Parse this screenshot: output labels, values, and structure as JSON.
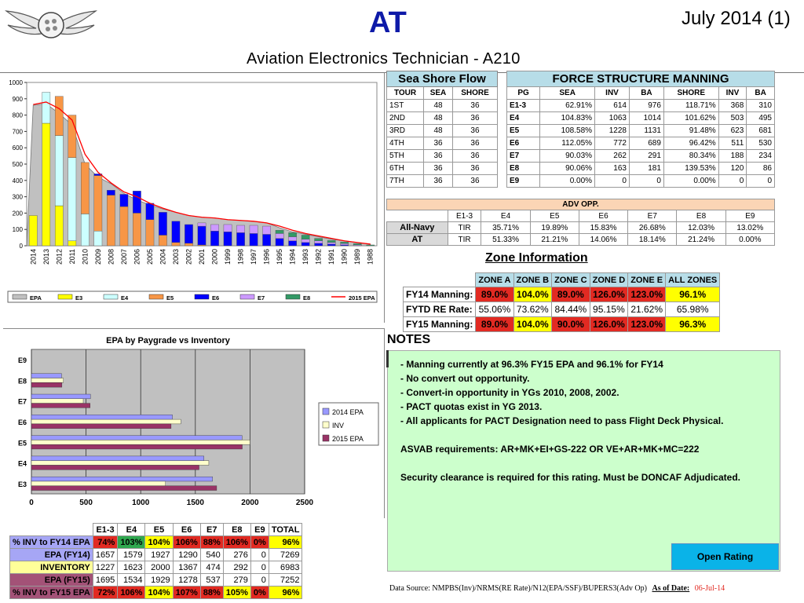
{
  "header": {
    "title": "AT",
    "date": "July 2014 (1)",
    "subtitle": "Aviation Electronics Technician - A210"
  },
  "colors": {
    "epa": "#c0c0c0",
    "e3": "#ffff00",
    "e4": "#ccffff",
    "e5": "#f79646",
    "e6": "#0000ff",
    "e7": "#cc99ff",
    "e8": "#339966",
    "line2015": "#ff0000",
    "bar2014": "#9999ff",
    "barInv": "#ffffcc",
    "bar2015": "#993366"
  },
  "chart_data": [
    {
      "type": "bar",
      "categories": [
        "2014",
        "2013",
        "2012",
        "2011",
        "2010",
        "2009",
        "2008",
        "2007",
        "2006",
        "2005",
        "2004",
        "2003",
        "2002",
        "2001",
        "2000",
        "1999",
        "1998",
        "1997",
        "1996",
        "1995",
        "1994",
        "1993",
        "1992",
        "1991",
        "1990",
        "1989",
        "1988"
      ],
      "ylim": [
        0,
        1000
      ],
      "yticks": [
        0,
        100,
        200,
        300,
        400,
        500,
        600,
        700,
        800,
        900,
        1000
      ],
      "series": [
        {
          "name": "EPA",
          "values": [
            860,
            870,
            810,
            740,
            500,
            420,
            380,
            320,
            280,
            250,
            225,
            205,
            185,
            175,
            170,
            160,
            155,
            150,
            140,
            110,
            85,
            70,
            55,
            40,
            30,
            20,
            10
          ]
        },
        {
          "name": "E3",
          "values": [
            185,
            750,
            245,
            30,
            0,
            0,
            0,
            0,
            0,
            0,
            0,
            0,
            0,
            0,
            0,
            0,
            0,
            0,
            0,
            0,
            0,
            0,
            0,
            0,
            0,
            0,
            0
          ]
        },
        {
          "name": "E4",
          "values": [
            0,
            190,
            430,
            510,
            195,
            90,
            0,
            0,
            0,
            0,
            0,
            0,
            0,
            0,
            0,
            0,
            0,
            0,
            0,
            0,
            0,
            0,
            0,
            0,
            0,
            0,
            0
          ]
        },
        {
          "name": "E5",
          "values": [
            0,
            0,
            240,
            260,
            315,
            340,
            310,
            240,
            200,
            160,
            65,
            20,
            15,
            5,
            0,
            0,
            0,
            0,
            0,
            0,
            0,
            0,
            0,
            0,
            0,
            0,
            0
          ]
        },
        {
          "name": "E6",
          "values": [
            0,
            0,
            0,
            0,
            0,
            10,
            30,
            75,
            135,
            100,
            140,
            130,
            115,
            115,
            90,
            85,
            80,
            75,
            70,
            45,
            30,
            20,
            15,
            10,
            5,
            0,
            0
          ]
        },
        {
          "name": "E7",
          "values": [
            0,
            0,
            0,
            0,
            0,
            0,
            0,
            0,
            0,
            0,
            0,
            0,
            0,
            20,
            40,
            45,
            45,
            50,
            50,
            30,
            25,
            20,
            15,
            10,
            8,
            5,
            0
          ]
        },
        {
          "name": "E8",
          "values": [
            0,
            0,
            0,
            0,
            0,
            0,
            0,
            0,
            0,
            0,
            0,
            0,
            0,
            0,
            0,
            0,
            0,
            0,
            0,
            20,
            25,
            25,
            15,
            12,
            10,
            8,
            5
          ]
        },
        {
          "name": "2015 EPA",
          "type": "line",
          "values": [
            865,
            880,
            840,
            770,
            560,
            450,
            385,
            330,
            300,
            260,
            230,
            205,
            185,
            175,
            170,
            160,
            155,
            150,
            140,
            120,
            95,
            75,
            60,
            45,
            30,
            20,
            10
          ]
        }
      ],
      "legend": [
        "EPA",
        "E3",
        "E4",
        "E5",
        "E6",
        "E7",
        "E8",
        "2015 EPA"
      ],
      "legend_position": "bottom"
    },
    {
      "type": "bar",
      "orientation": "horizontal",
      "title": "EPA by Paygrade vs Inventory",
      "categories": [
        "E9",
        "E8",
        "E7",
        "E6",
        "E5",
        "E4",
        "E3"
      ],
      "xlim": [
        0,
        2500
      ],
      "xticks": [
        0,
        500,
        1000,
        1500,
        2000,
        2500
      ],
      "series": [
        {
          "name": "2014 EPA",
          "values": [
            0,
            276,
            540,
            1290,
            1927,
            1579,
            1657
          ]
        },
        {
          "name": "INV",
          "values": [
            0,
            292,
            474,
            1367,
            2000,
            1623,
            1227
          ]
        },
        {
          "name": "2015 EPA",
          "values": [
            0,
            279,
            537,
            1278,
            1929,
            1534,
            1695
          ]
        }
      ],
      "legend_position": "right"
    }
  ],
  "sea_shore": {
    "title": "Sea Shore Flow",
    "headers": [
      "TOUR",
      "SEA",
      "SHORE"
    ],
    "rows": [
      [
        "1ST",
        "48",
        "36"
      ],
      [
        "2ND",
        "48",
        "36"
      ],
      [
        "3RD",
        "48",
        "36"
      ],
      [
        "4TH",
        "36",
        "36"
      ],
      [
        "5TH",
        "36",
        "36"
      ],
      [
        "6TH",
        "36",
        "36"
      ],
      [
        "7TH",
        "36",
        "36"
      ]
    ]
  },
  "force": {
    "title": "FORCE STRUCTURE MANNING",
    "headers": [
      "PG",
      "SEA",
      "INV",
      "BA",
      "SHORE",
      "INV",
      "BA"
    ],
    "rows": [
      [
        "E1-3",
        "62.91%",
        "614",
        "976",
        "118.71%",
        "368",
        "310"
      ],
      [
        "E4",
        "104.83%",
        "1063",
        "1014",
        "101.62%",
        "503",
        "495"
      ],
      [
        "E5",
        "108.58%",
        "1228",
        "1131",
        "91.48%",
        "623",
        "681"
      ],
      [
        "E6",
        "112.05%",
        "772",
        "689",
        "96.42%",
        "511",
        "530"
      ],
      [
        "E7",
        "90.03%",
        "262",
        "291",
        "80.34%",
        "188",
        "234"
      ],
      [
        "E8",
        "90.06%",
        "163",
        "181",
        "139.53%",
        "120",
        "86"
      ],
      [
        "E9",
        "0.00%",
        "0",
        "0",
        "0.00%",
        "0",
        "0"
      ]
    ]
  },
  "adv": {
    "title": "ADV OPP.",
    "headers": [
      "E1-3",
      "E4",
      "E5",
      "E6",
      "E7",
      "E8",
      "E9"
    ],
    "rows": [
      {
        "label": "All-Navy",
        "vals": [
          "TIR",
          "35.71%",
          "19.89%",
          "15.83%",
          "26.68%",
          "12.03%",
          "13.02%"
        ]
      },
      {
        "label": "AT",
        "vals": [
          "TIR",
          "51.33%",
          "21.21%",
          "14.06%",
          "18.14%",
          "21.24%",
          "0.00%"
        ]
      }
    ]
  },
  "zone": {
    "title": "Zone Information",
    "headers": [
      "ZONE A",
      "ZONE B",
      "ZONE C",
      "ZONE D",
      "ZONE E",
      "ALL ZONES"
    ],
    "rows": [
      {
        "label": "FY14 Manning:",
        "vals": [
          "89.0%",
          "104.0%",
          "89.0%",
          "126.0%",
          "123.0%",
          "96.1%"
        ],
        "cls": [
          "r",
          "y",
          "r",
          "r",
          "r",
          "y"
        ]
      },
      {
        "label": "FYTD RE Rate:",
        "vals": [
          "55.06%",
          "73.62%",
          "84.44%",
          "95.15%",
          "21.62%",
          "65.98%"
        ],
        "cls": [
          "plain",
          "plain",
          "plain",
          "plain",
          "plain",
          "plain"
        ]
      },
      {
        "label": "FY15 Manning:",
        "vals": [
          "89.0%",
          "104.0%",
          "90.0%",
          "126.0%",
          "123.0%",
          "96.3%"
        ],
        "cls": [
          "r",
          "y",
          "r",
          "r",
          "r",
          "y"
        ]
      }
    ]
  },
  "notes": {
    "title": "NOTES",
    "lines": [
      "- Manning currently at  96.3% FY15 EPA and 96.1% for FY14",
      "- No convert out opportunity.",
      "- Convert-in opportunity in YGs 2010, 2008, 2002.",
      "- PACT quotas exist  in YG 2013.",
      "- All applicants for PACT Designation need to pass Flight Deck Physical."
    ],
    "asvab": "ASVAB requirements: AR+MK+EI+GS-222 OR VE+AR+MK+MC=222",
    "security": "Security clearance is required for this rating.  Must be DONCAF Adjudicated.",
    "button": "Open Rating"
  },
  "source": {
    "text": "Data Source: NMPBS(Inv)/NRMS(RE Rate)/N12(EPA/SSF)/BUPERS3(Adv Op)",
    "asof_label": "As of Date:",
    "asof_value": "06-Jul-14"
  },
  "bottom_table": {
    "headers": [
      "E1-3",
      "E4",
      "E5",
      "E6",
      "E7",
      "E8",
      "E9",
      "TOTAL"
    ],
    "rows": [
      {
        "label": "% INV to FY14 EPA",
        "vals": [
          "74%",
          "103%",
          "104%",
          "106%",
          "88%",
          "106%",
          "0%",
          "96%"
        ],
        "cls": [
          "r",
          "g",
          "y",
          "r",
          "r",
          "r",
          "r",
          "y"
        ],
        "lcls": "lav"
      },
      {
        "label": "EPA (FY14)",
        "vals": [
          "1657",
          "1579",
          "1927",
          "1290",
          "540",
          "276",
          "0",
          "7269"
        ],
        "cls": [
          "plain",
          "plain",
          "plain",
          "plain",
          "plain",
          "plain",
          "plain",
          "plain"
        ],
        "lcls": "lav"
      },
      {
        "label": "INVENTORY",
        "vals": [
          "1227",
          "1623",
          "2000",
          "1367",
          "474",
          "292",
          "0",
          "6983"
        ],
        "cls": [
          "plain",
          "plain",
          "plain",
          "plain",
          "plain",
          "plain",
          "plain",
          "plain"
        ],
        "lcls": "lyel"
      },
      {
        "label": "EPA (FY15)",
        "vals": [
          "1695",
          "1534",
          "1929",
          "1278",
          "537",
          "279",
          "0",
          "7252"
        ],
        "cls": [
          "plain",
          "plain",
          "plain",
          "plain",
          "plain",
          "plain",
          "plain",
          "plain"
        ],
        "lcls": "plum"
      },
      {
        "label": "% INV to FY15 EPA",
        "vals": [
          "72%",
          "106%",
          "104%",
          "107%",
          "88%",
          "105%",
          "0%",
          "96%"
        ],
        "cls": [
          "r",
          "r",
          "y",
          "r",
          "r",
          "y",
          "r",
          "y"
        ],
        "lcls": "plum"
      }
    ]
  }
}
